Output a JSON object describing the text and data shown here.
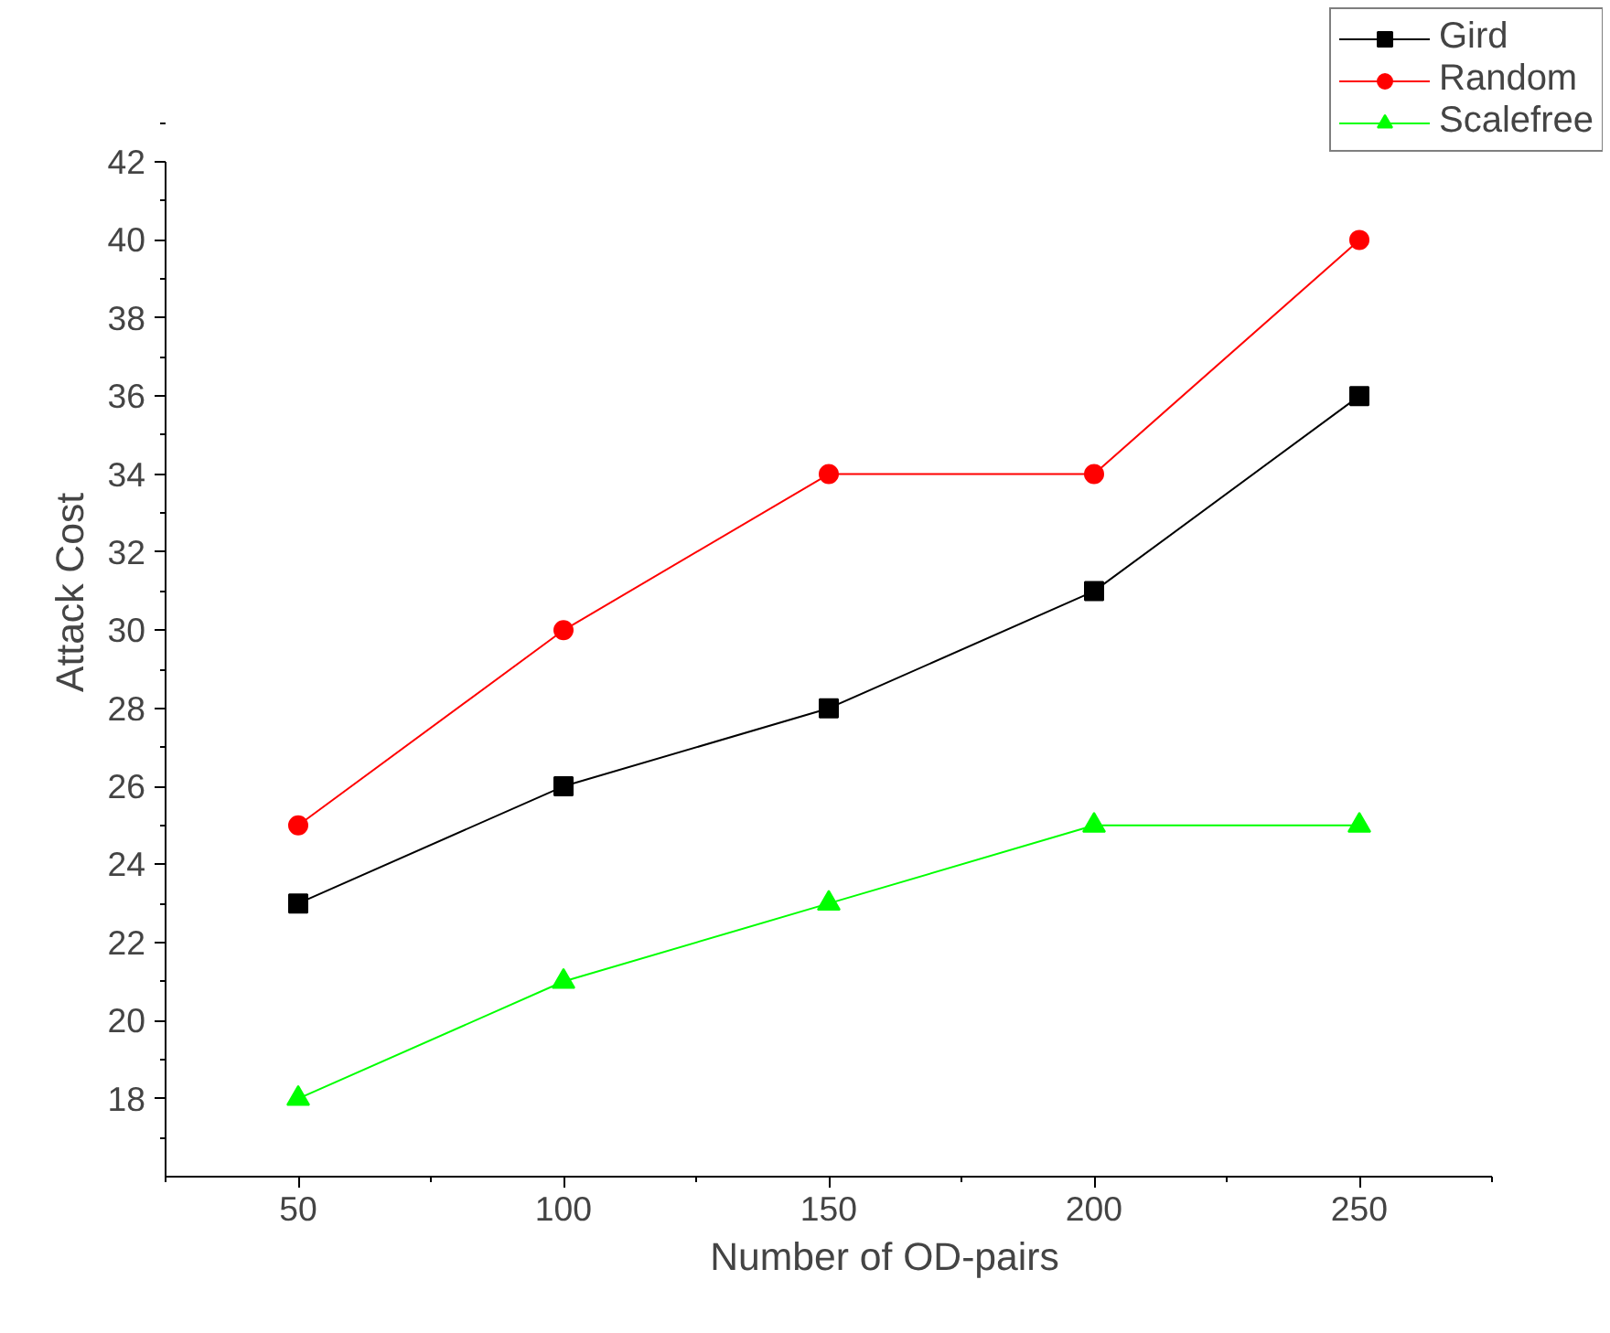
{
  "chart_data": {
    "type": "line",
    "xlabel": "Number of OD-pairs",
    "ylabel": "Attack Cost",
    "x": [
      50,
      100,
      150,
      200,
      250
    ],
    "series": [
      {
        "name": "Gird",
        "color": "#000000",
        "marker": "square",
        "values": [
          23,
          26,
          28,
          31,
          36
        ]
      },
      {
        "name": "Random",
        "color": "#ff0000",
        "marker": "circle",
        "values": [
          25,
          30,
          34,
          34,
          40
        ]
      },
      {
        "name": "Scalefree",
        "color": "#00ff00",
        "marker": "triangle",
        "values": [
          18,
          21,
          23,
          25,
          25
        ]
      }
    ],
    "xlim": [
      25,
      275
    ],
    "xticks": [
      50,
      100,
      150,
      200,
      250
    ],
    "ylim": [
      16,
      42
    ],
    "yticks": [
      18,
      20,
      22,
      24,
      26,
      28,
      30,
      32,
      34,
      36,
      38,
      40,
      42
    ],
    "grid": false,
    "legend": "top right",
    "line_style": "solid"
  }
}
